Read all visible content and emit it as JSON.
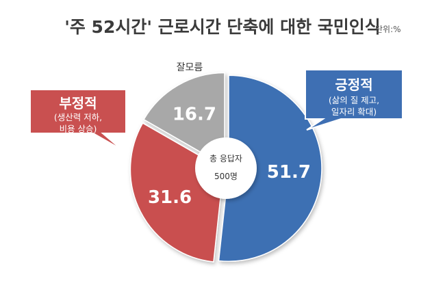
{
  "chart_data": {
    "type": "pie",
    "title": "'주 52시간' 근로시간 단축에 대한 국민인식",
    "unit_label": "단위:%",
    "center_label_1": "총 응답자",
    "center_label_2": "500명",
    "slices": [
      {
        "name": "긍정적",
        "value": 51.7,
        "color": "#3e6fb3",
        "value_label": "51.7"
      },
      {
        "name": "부정적",
        "value": 31.6,
        "color": "#c95050",
        "value_label": "31.6"
      },
      {
        "name": "잘모름",
        "value": 16.7,
        "color": "#a8a8a8",
        "value_label": "16.7"
      }
    ],
    "callouts": {
      "positive": {
        "title": "긍정적",
        "line1": "(삶의 질 제고,",
        "line2": "일자리 확대)",
        "color": "#3e6fb3"
      },
      "negative": {
        "title": "부정적",
        "line1": "(생산력 저하,",
        "line2": "비용 상승)",
        "color": "#c95050"
      },
      "unknown": {
        "title": "잘모름"
      }
    }
  }
}
